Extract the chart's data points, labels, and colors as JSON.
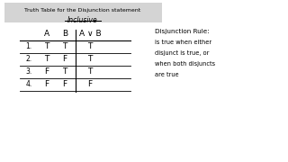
{
  "title": "Truth Table for the Disjunction statement",
  "subtitle": "Inclusive",
  "table_headers": [
    "A",
    "B",
    "A ∨ B"
  ],
  "table_rows": [
    [
      "1.",
      "T",
      "T",
      "T"
    ],
    [
      "2.",
      "T",
      "F",
      "T"
    ],
    [
      "3.",
      "F",
      "T",
      "T"
    ],
    [
      "4.",
      "F",
      "F",
      "F"
    ]
  ],
  "rule_title": "Disjunction Rule:",
  "rule_lines": [
    "is true when either",
    "disjunct is true, or",
    "when both disjuncts",
    "are true"
  ],
  "title_box_color": "#d4d4d4",
  "bg_color": "#ffffff"
}
